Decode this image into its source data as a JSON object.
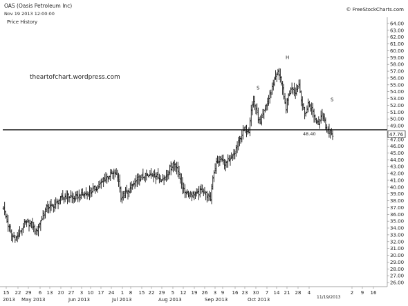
{
  "header": {
    "title": "OAS (Oasis Petroleum Inc)",
    "timestamp": "Nov 19 2013 12:00:00",
    "copyright": "© FreeStockCharts.com",
    "panel_label": "Price History",
    "watermark": "theartofchart.wordpress.com"
  },
  "chart_data": {
    "type": "ohlc",
    "title": "OAS (Oasis Petroleum Inc)",
    "ylim": [
      25.5,
      64.5
    ],
    "y_ticks": [
      "64.00",
      "63.00",
      "62.00",
      "61.00",
      "60.00",
      "59.00",
      "58.00",
      "57.00",
      "56.00",
      "55.00",
      "54.00",
      "53.00",
      "52.00",
      "51.00",
      "50.00",
      "49.00",
      "48.00",
      "47.00",
      "46.00",
      "45.00",
      "44.00",
      "43.00",
      "42.00",
      "41.00",
      "40.00",
      "39.00",
      "38.00",
      "37.00",
      "36.00",
      "35.00",
      "34.00",
      "33.00",
      "32.00",
      "31.00",
      "30.00",
      "29.00",
      "28.00",
      "27.00",
      "26.00"
    ],
    "x_day_ticks": [
      "15",
      "22",
      "29",
      "6",
      "13",
      "20",
      "27",
      "3",
      "10",
      "17",
      "24",
      "1",
      "8",
      "15",
      "22",
      "29",
      "5",
      "12",
      "19",
      "26",
      "3",
      "9",
      "16",
      "23",
      "30",
      "7",
      "14",
      "21",
      "28",
      "4",
      "2",
      "9",
      "16"
    ],
    "x_month_labels": [
      "2013",
      "May 2013",
      "Jun 2013",
      "Jul 2013",
      "Aug 2013",
      "Sep 2013",
      "Oct 2013"
    ],
    "x_date_label": "11/19/2013",
    "horizontal_line": {
      "value": 48.4,
      "label": "48.40"
    },
    "last_price": "47.76",
    "annotations": [
      {
        "text": "S",
        "near_price": 54.3
      },
      {
        "text": "H",
        "near_price": 58.8
      },
      {
        "text": "S",
        "near_price": 52.6
      }
    ],
    "close_path": [
      [
        0,
        37.0
      ],
      [
        3,
        35.0
      ],
      [
        7,
        32.8
      ],
      [
        11,
        32.5
      ],
      [
        15,
        33.6
      ],
      [
        19,
        34.8
      ],
      [
        24,
        34.5
      ],
      [
        28,
        33.5
      ],
      [
        32,
        35.0
      ],
      [
        37,
        37.0
      ],
      [
        43,
        37.3
      ],
      [
        49,
        38.2
      ],
      [
        55,
        38.8
      ],
      [
        60,
        38.3
      ],
      [
        66,
        38.8
      ],
      [
        72,
        39.0
      ],
      [
        79,
        39.8
      ],
      [
        84,
        40.5
      ],
      [
        88,
        41.4
      ],
      [
        92,
        41.8
      ],
      [
        96,
        42.2
      ],
      [
        99,
        41.0
      ],
      [
        101,
        38.5
      ],
      [
        103,
        38.8
      ],
      [
        107,
        39.3
      ],
      [
        112,
        40.5
      ],
      [
        116,
        41.2
      ],
      [
        120,
        41.6
      ],
      [
        125,
        41.6
      ],
      [
        129,
        41.9
      ],
      [
        134,
        41.4
      ],
      [
        138,
        41.2
      ],
      [
        142,
        42.4
      ],
      [
        146,
        43.4
      ],
      [
        149,
        43.0
      ],
      [
        152,
        41.2
      ],
      [
        155,
        39.4
      ],
      [
        158,
        39.2
      ],
      [
        162,
        39.0
      ],
      [
        167,
        39.0
      ],
      [
        171,
        39.6
      ],
      [
        175,
        38.8
      ],
      [
        178,
        38.2
      ],
      [
        180,
        41.5
      ],
      [
        183,
        43.6
      ],
      [
        187,
        44.0
      ],
      [
        191,
        43.5
      ],
      [
        195,
        43.9
      ],
      [
        199,
        45.0
      ],
      [
        202,
        46.5
      ],
      [
        205,
        47.8
      ],
      [
        208,
        48.5
      ],
      [
        211,
        48.3
      ],
      [
        213,
        51.5
      ],
      [
        215,
        52.5
      ],
      [
        217,
        51.5
      ],
      [
        219,
        50.2
      ],
      [
        221,
        49.2
      ],
      [
        223,
        50.5
      ],
      [
        227,
        52.5
      ],
      [
        230,
        54.0
      ],
      [
        233,
        56.0
      ],
      [
        236,
        56.8
      ],
      [
        238,
        56.2
      ],
      [
        241,
        53.0
      ],
      [
        243,
        51.5
      ],
      [
        245,
        53.5
      ],
      [
        248,
        54.8
      ],
      [
        251,
        54.0
      ],
      [
        254,
        55.0
      ],
      [
        256,
        53.0
      ],
      [
        259,
        50.5
      ],
      [
        262,
        52.2
      ],
      [
        265,
        51.5
      ],
      [
        268,
        50.0
      ],
      [
        271,
        49.5
      ],
      [
        274,
        51.0
      ],
      [
        277,
        49.0
      ],
      [
        280,
        48.0
      ],
      [
        283,
        47.76
      ]
    ]
  }
}
